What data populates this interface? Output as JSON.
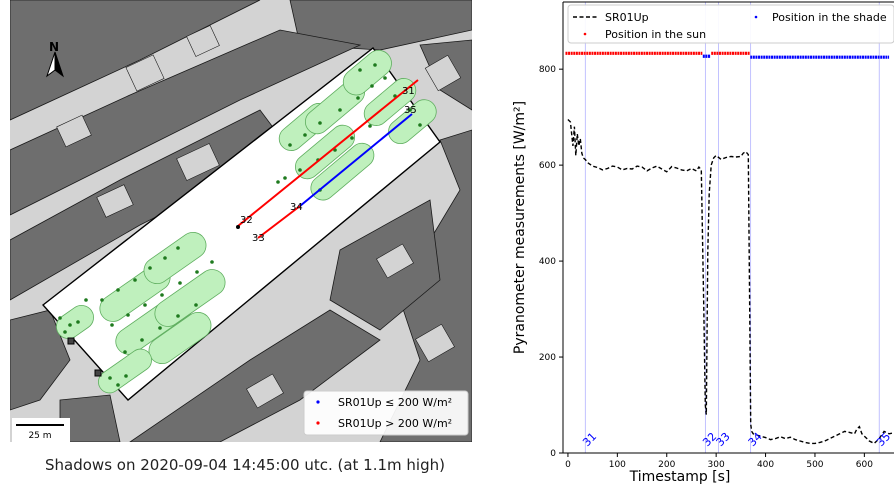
{
  "map": {
    "north_label": "N",
    "scale_label": "25 m",
    "caption": "Shadows on 2020-09-04 14:45:00 utc. (at 1.1m high)",
    "point_labels": [
      "31",
      "32",
      "33",
      "34",
      "35"
    ],
    "legend": {
      "shade_label": "SR01Up ≤ 200 W/m²",
      "sun_label": "SR01Up > 200 W/m²"
    },
    "colors": {
      "building": "#6e6e6e",
      "street": "#d3d3d3",
      "ground": "#ffffff",
      "tree": "#bff0bd",
      "tree_dot": "#1e7a1e",
      "sun_track": "#ff0000",
      "shade_track": "#0000ff"
    }
  },
  "chart_data": {
    "type": "line",
    "xlabel": "Timestamp [s]",
    "ylabel": "Pyranometer measurements [W/m²]",
    "xlim": [
      -10,
      660
    ],
    "ylim": [
      0,
      940
    ],
    "xticks": [
      0,
      100,
      200,
      300,
      400,
      500,
      600
    ],
    "yticks": [
      0,
      200,
      400,
      600,
      800
    ],
    "legend": [
      "SR01Up",
      "Position in the sun",
      "Position in the shade"
    ],
    "marker_labels": [
      {
        "label": "31",
        "x": 35
      },
      {
        "label": "32",
        "x": 278
      },
      {
        "label": "33",
        "x": 305
      },
      {
        "label": "34",
        "x": 370
      },
      {
        "label": "35",
        "x": 630
      }
    ],
    "series": [
      {
        "name": "SR01Up",
        "style": "dashed",
        "color": "#000000",
        "x": [
          0,
          5,
          10,
          13,
          16,
          19,
          22,
          25,
          28,
          31,
          35,
          40,
          50,
          60,
          70,
          80,
          90,
          100,
          110,
          120,
          130,
          140,
          150,
          160,
          170,
          180,
          190,
          200,
          210,
          220,
          230,
          240,
          250,
          260,
          265,
          270,
          275,
          278,
          280,
          283,
          286,
          290,
          295,
          300,
          310,
          320,
          330,
          340,
          350,
          355,
          360,
          365,
          368,
          370,
          372,
          375,
          380,
          390,
          400,
          410,
          420,
          430,
          440,
          450,
          460,
          470,
          480,
          490,
          500,
          510,
          520,
          530,
          540,
          550,
          560,
          570,
          580,
          585,
          590,
          595,
          600,
          610,
          620,
          630,
          640,
          650,
          660
        ],
        "y": [
          695,
          690,
          640,
          680,
          620,
          665,
          640,
          655,
          625,
          615,
          612,
          605,
          598,
          595,
          590,
          593,
          598,
          596,
          590,
          593,
          592,
          598,
          596,
          588,
          594,
          598,
          592,
          586,
          597,
          594,
          590,
          588,
          593,
          588,
          596,
          590,
          300,
          100,
          80,
          420,
          540,
          600,
          615,
          620,
          612,
          616,
          618,
          617,
          618,
          625,
          628,
          622,
          300,
          60,
          45,
          40,
          38,
          35,
          32,
          28,
          30,
          34,
          30,
          33,
          28,
          25,
          22,
          20,
          20,
          22,
          25,
          30,
          35,
          40,
          45,
          43,
          40,
          50,
          55,
          40,
          35,
          25,
          20,
          30,
          45,
          40,
          42
        ]
      },
      {
        "name": "Position in the sun",
        "color": "#ff0000",
        "segments": [
          {
            "x": [
              -5,
              272
            ],
            "y": 833
          },
          {
            "x": [
              290,
              368
            ],
            "y": 833
          }
        ]
      },
      {
        "name": "Position in the shade",
        "color": "#0000ff",
        "segments": [
          {
            "x": [
              273,
              289
            ],
            "y": 827
          },
          {
            "x": [
              369,
              650
            ],
            "y": 825
          }
        ]
      }
    ]
  }
}
